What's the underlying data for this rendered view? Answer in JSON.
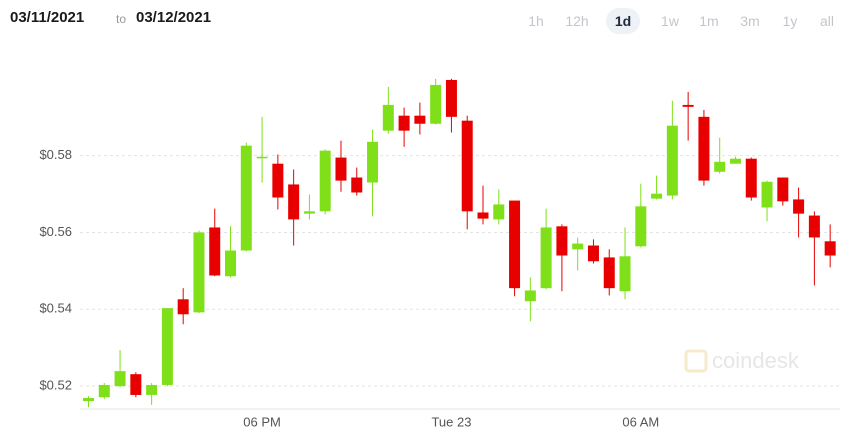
{
  "header": {
    "from": "03/11/2021",
    "separator": "to",
    "to": "03/12/2021",
    "ranges": [
      "1h",
      "12h",
      "1d",
      "1w",
      "1m",
      "3m",
      "1y",
      "all"
    ],
    "active_range": 2
  },
  "chart_data": {
    "type": "candlestick",
    "watermark": "coindesk",
    "categories": [
      null,
      null,
      null,
      null,
      null,
      null,
      null,
      null,
      null,
      null,
      null,
      "06 PM",
      null,
      null,
      null,
      null,
      null,
      null,
      null,
      null,
      null,
      null,
      null,
      "Tue 23",
      null,
      null,
      null,
      null,
      null,
      null,
      null,
      null,
      null,
      null,
      null,
      "06 AM",
      null,
      null,
      null,
      null,
      null,
      null,
      null,
      null,
      null,
      null,
      null,
      null
    ],
    "open": [
      0.5161,
      0.5171,
      0.52,
      0.5231,
      0.5177,
      0.5203,
      0.5426,
      0.5392,
      0.5613,
      0.5486,
      0.5553,
      0.5795,
      0.5779,
      0.5725,
      0.5649,
      0.5655,
      0.5795,
      0.5743,
      0.573,
      0.5865,
      0.5904,
      0.5904,
      0.5883,
      0.5997,
      0.5891,
      0.5652,
      0.5634,
      0.5683,
      0.5421,
      0.5455,
      0.5616,
      0.5556,
      0.5566,
      0.5535,
      0.5447,
      0.5564,
      0.5688,
      0.5696,
      0.5932,
      0.5901,
      0.5758,
      0.5779,
      0.5792,
      0.5665,
      0.5743,
      0.5686,
      0.5644,
      0.5577
    ],
    "high": [
      0.5174,
      0.5208,
      0.5294,
      0.5236,
      0.5208,
      0.5403,
      0.5455,
      0.5605,
      0.5662,
      0.5616,
      0.5834,
      0.5901,
      0.5803,
      0.5764,
      0.5699,
      0.5816,
      0.5839,
      0.5769,
      0.5868,
      0.5979,
      0.5925,
      0.5938,
      0.6,
      0.6,
      0.5904,
      0.5722,
      0.5712,
      0.5683,
      0.5483,
      0.5662,
      0.5621,
      0.5587,
      0.5582,
      0.5556,
      0.5613,
      0.5727,
      0.5748,
      0.5943,
      0.5966,
      0.5919,
      0.5847,
      0.5797,
      0.5795,
      0.5735,
      0.5743,
      0.5717,
      0.5655,
      0.5621
    ],
    "low": [
      0.5145,
      0.5166,
      0.5197,
      0.5171,
      0.5151,
      0.52,
      0.5361,
      0.539,
      0.5486,
      0.5483,
      0.5551,
      0.573,
      0.566,
      0.5566,
      0.5634,
      0.5647,
      0.5706,
      0.5696,
      0.5642,
      0.5857,
      0.5823,
      0.5855,
      0.5881,
      0.586,
      0.5608,
      0.5621,
      0.5621,
      0.5434,
      0.5369,
      0.5452,
      0.5447,
      0.5501,
      0.5519,
      0.5436,
      0.5426,
      0.5561,
      0.5686,
      0.5686,
      0.5839,
      0.5722,
      0.5753,
      0.5779,
      0.5683,
      0.5629,
      0.567,
      0.5587,
      0.5462,
      0.5509
    ],
    "close": [
      0.5169,
      0.5203,
      0.5239,
      0.5177,
      0.5203,
      0.5403,
      0.5387,
      0.56,
      0.5488,
      0.5553,
      0.5826,
      0.5797,
      0.5691,
      0.5634,
      0.5655,
      0.5813,
      0.5735,
      0.5704,
      0.5836,
      0.5932,
      0.5865,
      0.5883,
      0.5984,
      0.5901,
      0.5655,
      0.5636,
      0.5673,
      0.5455,
      0.5449,
      0.5613,
      0.554,
      0.5571,
      0.5525,
      0.5455,
      0.5538,
      0.5668,
      0.5701,
      0.5878,
      0.5927,
      0.5735,
      0.5784,
      0.5792,
      0.5691,
      0.5732,
      0.5681,
      0.5649,
      0.5587,
      0.554
    ],
    "up_color": "#7fe01a",
    "down_color": "#e80000",
    "ylim": [
      0.513,
      0.6088
    ],
    "yticks": [
      {
        "value": 0.52,
        "label": "$0.52"
      },
      {
        "value": 0.54,
        "label": "$0.54"
      },
      {
        "value": 0.56,
        "label": "$0.56"
      },
      {
        "value": 0.58,
        "label": "$0.58"
      }
    ],
    "grid": true
  }
}
